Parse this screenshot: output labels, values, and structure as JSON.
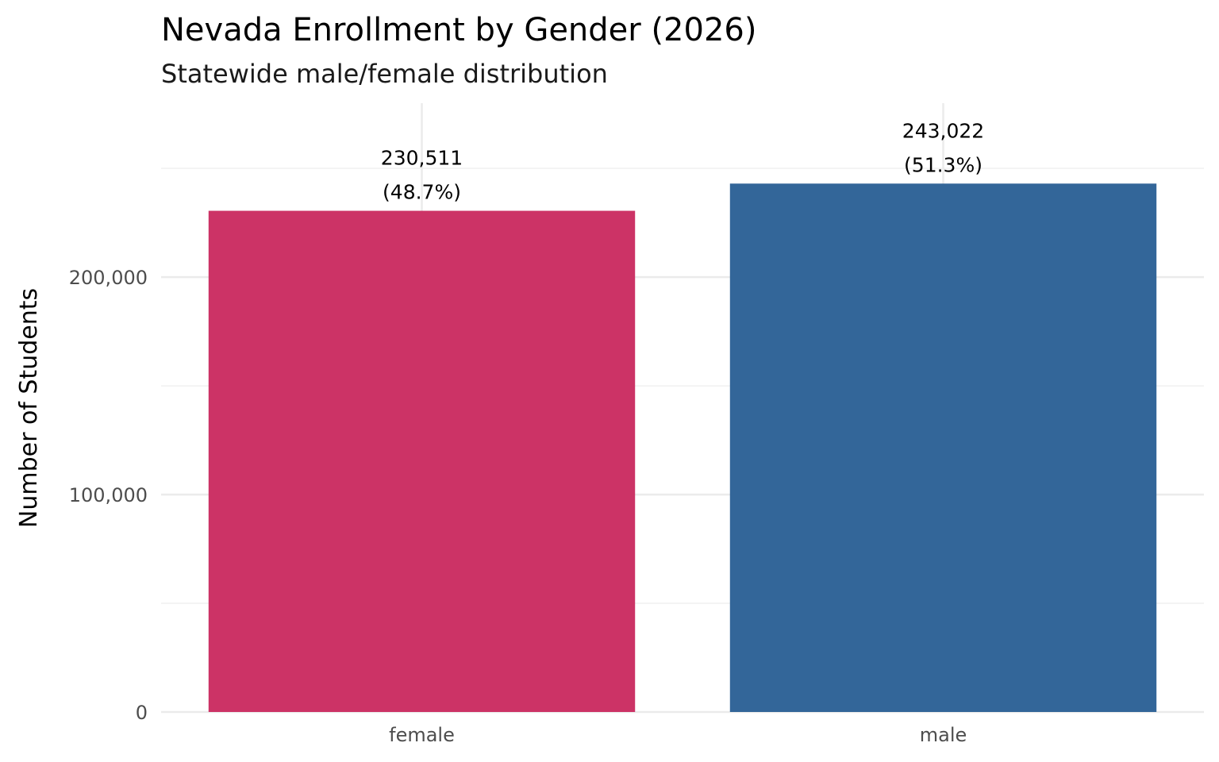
{
  "chart_data": {
    "type": "bar",
    "title": "Nevada Enrollment by Gender (2026)",
    "subtitle": "Statewide male/female distribution",
    "xlabel": "",
    "ylabel": "Number of Students",
    "categories": [
      "female",
      "male"
    ],
    "values": [
      230511,
      243022
    ],
    "data_labels": [
      {
        "count": "230,511",
        "percent": "(48.7%)"
      },
      {
        "count": "243,022",
        "percent": "(51.3%)"
      }
    ],
    "colors": [
      "#CC3366",
      "#336699"
    ],
    "ylim": [
      0,
      280000
    ],
    "yticks": [
      0,
      100000,
      200000
    ],
    "ytick_labels": [
      "0",
      "100,000",
      "200,000"
    ],
    "grid": true,
    "legend": "none"
  }
}
